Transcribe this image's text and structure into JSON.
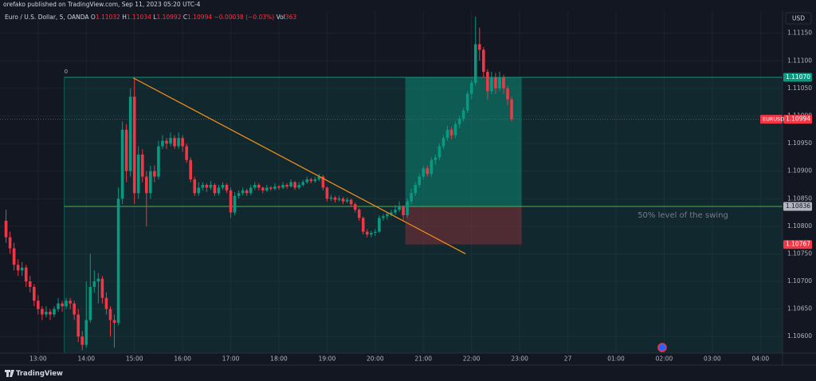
{
  "chart_data": {
    "type": "candlestick",
    "title": "orefako published on TradingView.com, Sep 11, 2023 05:20 UTC-4",
    "symbol": "Euro / U.S. Dollar, 5, OANDA",
    "legend": [
      {
        "key": "O",
        "value": "1.11032"
      },
      {
        "key": "H",
        "value": "1.11034"
      },
      {
        "key": "L",
        "value": "1.10992"
      },
      {
        "key": "C",
        "value": "1.10994"
      }
    ],
    "change": "−0.00038 (−0.03%)",
    "volume_key": "Vol",
    "volume": "363",
    "currency": "USD",
    "footer": "TradingView",
    "annotation": "50% level of the swing",
    "fib_label": "0",
    "up_color": "#089981",
    "down_color": "#f23645",
    "grid": true,
    "xlim": [
      -1.5,
      193.5
    ],
    "ylim": [
      1.1057,
      1.1119
    ],
    "xticks": [
      {
        "value": 8,
        "label": "13:00"
      },
      {
        "value": 20,
        "label": "14:00"
      },
      {
        "value": 32,
        "label": "15:00"
      },
      {
        "value": 44,
        "label": "16:00"
      },
      {
        "value": 56,
        "label": "17:00"
      },
      {
        "value": 68,
        "label": "18:00"
      },
      {
        "value": 80,
        "label": "19:00"
      },
      {
        "value": 92,
        "label": "20:00"
      },
      {
        "value": 104,
        "label": "21:00"
      },
      {
        "value": 116,
        "label": "22:00"
      },
      {
        "value": 128,
        "label": "23:00"
      },
      {
        "value": 140,
        "label": "27"
      },
      {
        "value": 152,
        "label": "01:00"
      },
      {
        "value": 164,
        "label": "02:00"
      },
      {
        "value": 176,
        "label": "03:00"
      },
      {
        "value": 188,
        "label": "04:00"
      }
    ],
    "yticks": [
      {
        "value": 1.1115,
        "label": "1.11150"
      },
      {
        "value": 1.111,
        "label": "1.11100"
      },
      {
        "value": 1.1105,
        "label": "1.11050"
      },
      {
        "value": 1.11,
        "label": "1.11000"
      },
      {
        "value": 1.1095,
        "label": "1.10950"
      },
      {
        "value": 1.109,
        "label": "1.10900"
      },
      {
        "value": 1.1085,
        "label": "1.10850"
      },
      {
        "value": 1.108,
        "label": "1.10800"
      },
      {
        "value": 1.1075,
        "label": "1.10750"
      },
      {
        "value": 1.107,
        "label": "1.10700"
      },
      {
        "value": 1.1065,
        "label": "1.10650"
      },
      {
        "value": 1.106,
        "label": "1.10600"
      }
    ],
    "price_labels": [
      {
        "value": 1.1107,
        "label": "1.11070",
        "color": "#089981"
      },
      {
        "value": 1.10994,
        "label": "1.10994",
        "symbol": "EURUSD",
        "color": "#f23645"
      },
      {
        "value": 1.10836,
        "label": "1.10836",
        "color": "#b2b5be"
      },
      {
        "value": 1.10767,
        "label": "1.10767",
        "color": "#f23645"
      }
    ],
    "fib_start": 14.5,
    "position_start": 99.5,
    "position_end": 128.5,
    "trendline": {
      "x": [
        31.7,
        114.5
      ],
      "y": [
        1.11069,
        1.1075
      ],
      "color": "#f7931a"
    },
    "ohlc": [
      [
        1.1081,
        1.1083,
        1.1077,
        1.1078
      ],
      [
        1.1078,
        1.1079,
        1.1075,
        1.1076
      ],
      [
        1.1076,
        1.1077,
        1.1072,
        1.1073
      ],
      [
        1.1073,
        1.1074,
        1.1071,
        1.1072
      ],
      [
        1.1072,
        1.10735,
        1.1071,
        1.10725
      ],
      [
        1.10725,
        1.1073,
        1.1069,
        1.107
      ],
      [
        1.107,
        1.1071,
        1.1068,
        1.1069
      ],
      [
        1.1069,
        1.10695,
        1.10655,
        1.10665
      ],
      [
        1.10665,
        1.10675,
        1.1064,
        1.1065
      ],
      [
        1.1065,
        1.10655,
        1.1063,
        1.1064
      ],
      [
        1.1064,
        1.10655,
        1.10635,
        1.10645
      ],
      [
        1.10645,
        1.1065,
        1.1063,
        1.1064
      ],
      [
        1.1064,
        1.10655,
        1.10635,
        1.1065
      ],
      [
        1.1065,
        1.1067,
        1.10645,
        1.1066
      ],
      [
        1.1066,
        1.10665,
        1.10645,
        1.10655
      ],
      [
        1.10655,
        1.1067,
        1.1065,
        1.10665
      ],
      [
        1.10665,
        1.1067,
        1.1065,
        1.1066
      ],
      [
        1.1066,
        1.10665,
        1.1063,
        1.1064
      ],
      [
        1.1064,
        1.1065,
        1.1059,
        1.106
      ],
      [
        1.106,
        1.1061,
        1.10575,
        1.10585
      ],
      [
        1.10585,
        1.107,
        1.1058,
        1.1063
      ],
      [
        1.1063,
        1.1075,
        1.10625,
        1.1069
      ],
      [
        1.1069,
        1.1072,
        1.1068,
        1.107
      ],
      [
        1.107,
        1.10715,
        1.1066,
        1.10705
      ],
      [
        1.10705,
        1.1071,
        1.1066,
        1.1067
      ],
      [
        1.1067,
        1.1068,
        1.1064,
        1.1065
      ],
      [
        1.1065,
        1.10655,
        1.106,
        1.1063
      ],
      [
        1.1063,
        1.1064,
        1.1058,
        1.10625
      ],
      [
        1.10625,
        1.1087,
        1.1062,
        1.1085
      ],
      [
        1.1085,
        1.1099,
        1.1084,
        1.10975
      ],
      [
        1.10975,
        1.10985,
        1.1088,
        1.109
      ],
      [
        1.109,
        1.1105,
        1.1089,
        1.11035
      ],
      [
        1.11035,
        1.11069,
        1.1084,
        1.1086
      ],
      [
        1.1086,
        1.10945,
        1.1085,
        1.1093
      ],
      [
        1.1093,
        1.1094,
        1.1088,
        1.1089
      ],
      [
        1.1089,
        1.109,
        1.108,
        1.1086
      ],
      [
        1.1086,
        1.1091,
        1.1085,
        1.109
      ],
      [
        1.109,
        1.1091,
        1.1088,
        1.1089
      ],
      [
        1.1089,
        1.10955,
        1.10885,
        1.10945
      ],
      [
        1.10945,
        1.10965,
        1.1094,
        1.10955
      ],
      [
        1.10955,
        1.1096,
        1.1094,
        1.1095
      ],
      [
        1.1095,
        1.1097,
        1.10945,
        1.1096
      ],
      [
        1.1096,
        1.10965,
        1.1094,
        1.10945
      ],
      [
        1.10945,
        1.1097,
        1.1094,
        1.1096
      ],
      [
        1.1096,
        1.10965,
        1.10935,
        1.10945
      ],
      [
        1.10945,
        1.1095,
        1.10915,
        1.1092
      ],
      [
        1.1092,
        1.10925,
        1.1088,
        1.10885
      ],
      [
        1.10885,
        1.1089,
        1.10855,
        1.1086
      ],
      [
        1.1086,
        1.1088,
        1.10855,
        1.1087
      ],
      [
        1.1087,
        1.1088,
        1.10865,
        1.10875
      ],
      [
        1.10875,
        1.10878,
        1.10862,
        1.1087
      ],
      [
        1.1087,
        1.10882,
        1.10866,
        1.10875
      ],
      [
        1.10875,
        1.10878,
        1.10855,
        1.1086
      ],
      [
        1.1086,
        1.10875,
        1.10856,
        1.1087
      ],
      [
        1.1087,
        1.1088,
        1.10866,
        1.10875
      ],
      [
        1.10875,
        1.10878,
        1.1086,
        1.10865
      ],
      [
        1.10865,
        1.1087,
        1.10815,
        1.10825
      ],
      [
        1.10825,
        1.10862,
        1.1082,
        1.10855
      ],
      [
        1.10855,
        1.10865,
        1.1085,
        1.1086
      ],
      [
        1.1086,
        1.1087,
        1.10856,
        1.10865
      ],
      [
        1.10865,
        1.10868,
        1.10855,
        1.1086
      ],
      [
        1.1086,
        1.10875,
        1.10856,
        1.1087
      ],
      [
        1.1087,
        1.1088,
        1.10866,
        1.10875
      ],
      [
        1.10875,
        1.10878,
        1.10865,
        1.1087
      ],
      [
        1.1087,
        1.10872,
        1.1086,
        1.10865
      ],
      [
        1.10865,
        1.10875,
        1.10862,
        1.1087
      ],
      [
        1.1087,
        1.10873,
        1.10864,
        1.10868
      ],
      [
        1.10868,
        1.10878,
        1.10865,
        1.10872
      ],
      [
        1.10872,
        1.10875,
        1.10866,
        1.1087
      ],
      [
        1.1087,
        1.1088,
        1.10867,
        1.10875
      ],
      [
        1.10875,
        1.10878,
        1.10868,
        1.10872
      ],
      [
        1.10872,
        1.10885,
        1.1087,
        1.1088
      ],
      [
        1.1088,
        1.10882,
        1.10866,
        1.1087
      ],
      [
        1.1087,
        1.1088,
        1.10867,
        1.10875
      ],
      [
        1.10875,
        1.10884,
        1.10872,
        1.1088
      ],
      [
        1.1088,
        1.1089,
        1.10877,
        1.10885
      ],
      [
        1.10885,
        1.10888,
        1.10878,
        1.10882
      ],
      [
        1.10882,
        1.1089,
        1.10879,
        1.10885
      ],
      [
        1.10885,
        1.10895,
        1.10882,
        1.1089
      ],
      [
        1.1089,
        1.10893,
        1.10865,
        1.1087
      ],
      [
        1.1087,
        1.10872,
        1.10845,
        1.1085
      ],
      [
        1.1085,
        1.10857,
        1.10846,
        1.10852
      ],
      [
        1.10852,
        1.10855,
        1.10843,
        1.10848
      ],
      [
        1.10848,
        1.10855,
        1.10845,
        1.1085
      ],
      [
        1.1085,
        1.10853,
        1.1084,
        1.10845
      ],
      [
        1.10845,
        1.10852,
        1.10842,
        1.10848
      ],
      [
        1.10848,
        1.1085,
        1.10835,
        1.1084
      ],
      [
        1.1084,
        1.10843,
        1.10825,
        1.1083
      ],
      [
        1.1083,
        1.10833,
        1.1081,
        1.10815
      ],
      [
        1.10815,
        1.10818,
        1.10785,
        1.1079
      ],
      [
        1.1079,
        1.10795,
        1.1078,
        1.10785
      ],
      [
        1.10785,
        1.10792,
        1.1078,
        1.10788
      ],
      [
        1.10788,
        1.10795,
        1.10782,
        1.1079
      ],
      [
        1.1079,
        1.1082,
        1.10788,
        1.10815
      ],
      [
        1.10815,
        1.10822,
        1.1081,
        1.10818
      ],
      [
        1.10818,
        1.10826,
        1.10812,
        1.10822
      ],
      [
        1.10822,
        1.1083,
        1.10818,
        1.10825
      ],
      [
        1.10825,
        1.10838,
        1.1082,
        1.1083
      ],
      [
        1.1083,
        1.10845,
        1.10826,
        1.10835
      ],
      [
        1.10835,
        1.10838,
        1.1081,
        1.1082
      ],
      [
        1.1082,
        1.1085,
        1.10815,
        1.10845
      ],
      [
        1.10845,
        1.10868,
        1.1084,
        1.1086
      ],
      [
        1.1086,
        1.1088,
        1.10855,
        1.10875
      ],
      [
        1.10875,
        1.10895,
        1.1087,
        1.1089
      ],
      [
        1.1089,
        1.1091,
        1.10885,
        1.10905
      ],
      [
        1.10905,
        1.1091,
        1.1089,
        1.10895
      ],
      [
        1.10895,
        1.10925,
        1.1089,
        1.1092
      ],
      [
        1.1092,
        1.1093,
        1.10912,
        1.10925
      ],
      [
        1.10925,
        1.1095,
        1.1092,
        1.10945
      ],
      [
        1.10945,
        1.10965,
        1.1094,
        1.1096
      ],
      [
        1.1096,
        1.10982,
        1.10955,
        1.10975
      ],
      [
        1.10975,
        1.1098,
        1.10958,
        1.10965
      ],
      [
        1.10965,
        1.1099,
        1.1096,
        1.10985
      ],
      [
        1.10985,
        1.11,
        1.10978,
        1.10995
      ],
      [
        1.10995,
        1.11015,
        1.1099,
        1.1101
      ],
      [
        1.1101,
        1.11045,
        1.11005,
        1.1104
      ],
      [
        1.1104,
        1.11065,
        1.1103,
        1.1106
      ],
      [
        1.1106,
        1.1118,
        1.11055,
        1.1113
      ],
      [
        1.1113,
        1.1116,
        1.111,
        1.1112
      ],
      [
        1.1112,
        1.11125,
        1.1107,
        1.1108
      ],
      [
        1.1108,
        1.11085,
        1.1103,
        1.11045
      ],
      [
        1.11045,
        1.1108,
        1.1104,
        1.1107
      ],
      [
        1.1107,
        1.11078,
        1.1104,
        1.1105
      ],
      [
        1.1105,
        1.1108,
        1.11045,
        1.1107
      ],
      [
        1.1107,
        1.11075,
        1.1104,
        1.1105
      ],
      [
        1.1105,
        1.11055,
        1.1102,
        1.1103
      ],
      [
        1.1103,
        1.11035,
        1.1099,
        1.10994
      ]
    ]
  }
}
